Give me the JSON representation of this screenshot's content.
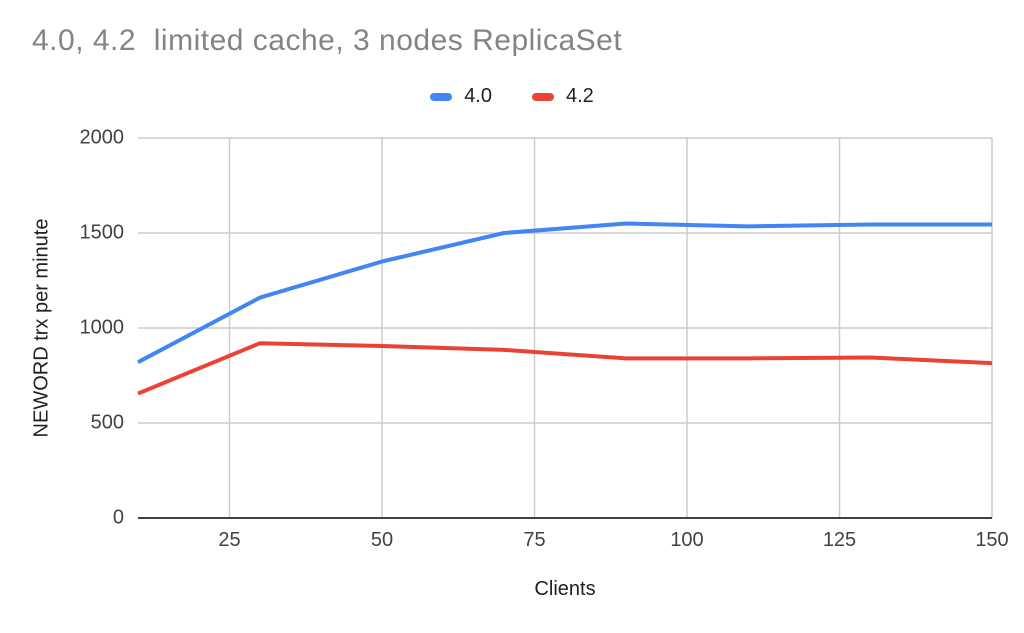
{
  "title": "4.0, 4.2  limited cache, 3 nodes ReplicaSet",
  "legend": {
    "items": [
      {
        "label": "4.0",
        "color": "#4285f4"
      },
      {
        "label": "4.2",
        "color": "#ea4335"
      }
    ]
  },
  "chart_data": {
    "type": "line",
    "title": "4.0, 4.2  limited cache, 3 nodes ReplicaSet",
    "xlabel": "Clients",
    "ylabel": "NEWORD trx per minute",
    "x": [
      10,
      30,
      50,
      70,
      90,
      110,
      130,
      150
    ],
    "series": [
      {
        "name": "4.0",
        "color": "#4285f4",
        "values": [
          820,
          1160,
          1350,
          1500,
          1550,
          1535,
          1545,
          1545
        ]
      },
      {
        "name": "4.2",
        "color": "#ea4335",
        "values": [
          655,
          920,
          905,
          885,
          840,
          840,
          845,
          815
        ]
      }
    ],
    "xlim": [
      10,
      150
    ],
    "ylim": [
      0,
      2000
    ],
    "xticks": [
      25,
      50,
      75,
      100,
      125,
      150
    ],
    "yticks": [
      0,
      500,
      1000,
      1500,
      2000
    ],
    "grid": true,
    "legend_position": "top"
  },
  "colors": {
    "background": "#ffffff",
    "grid": "#cccccc",
    "axis": "#424242",
    "title_text": "#848484",
    "tick_text": "#424242",
    "label_text": "#202124"
  }
}
